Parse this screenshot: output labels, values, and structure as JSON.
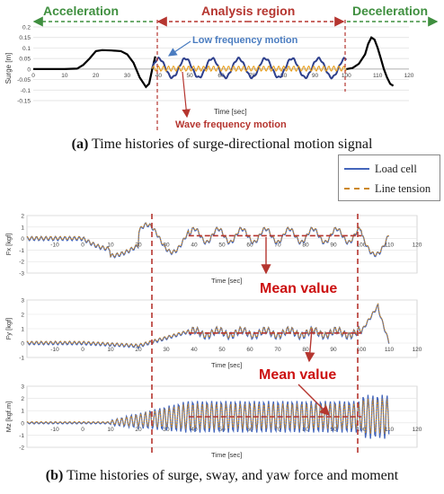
{
  "figure_a": {
    "caption_prefix": "(a)",
    "caption_text": " Time histories of surge-directional motion signal",
    "annotations": {
      "acceleration": "Acceleration",
      "analysis_region": "Analysis region",
      "deceleration": "Deceleration",
      "low_frequency_motion": "Low frequency motion",
      "wave_frequency_motion": "Wave frequency motion"
    },
    "colors": {
      "signal": "#000000",
      "low_freq": "#2d3f8c",
      "wave_freq": "#e8a020",
      "region": "#b5352f",
      "accel": "#3f8f3f",
      "low_label": "#4a7cc0",
      "wave_label": "#b5352f"
    }
  },
  "figure_b": {
    "caption_prefix": "(b)",
    "caption_text": " Time histories of surge, sway, and yaw force and moment",
    "legend": {
      "load_cell": "Load cell",
      "line_tension": "Line tension"
    },
    "mean_value_1": "Mean value",
    "mean_value_2": "Mean value",
    "colors": {
      "load_cell": "#4466bb",
      "line_tension": "#cc8822",
      "marker": "#b5352f",
      "mean_text": "#cc1111"
    }
  },
  "chart_data": [
    {
      "type": "line",
      "id": "surge_motion",
      "xlabel": "Time [sec]",
      "ylabel": "Surge [m]",
      "xlim": [
        0,
        120
      ],
      "ylim": [
        -0.15,
        0.2
      ],
      "xticks": [
        "0",
        "10",
        "20",
        "30",
        "40",
        "50",
        "60",
        "70",
        "80",
        "90",
        "100",
        "110",
        "120"
      ],
      "yticks": [
        "-0.15",
        "-0.1",
        "-0.05",
        "0",
        "0.05",
        "0.1",
        "0.15",
        "0.2"
      ],
      "analysis_region": [
        38,
        100
      ],
      "series": [
        {
          "x": [
            0,
            5,
            10,
            14,
            16,
            18,
            20,
            22,
            25,
            28,
            30,
            32,
            34,
            36,
            37,
            38,
            39
          ],
          "y": [
            0,
            0,
            0,
            0.002,
            0.02,
            0.05,
            0.085,
            0.09,
            0.088,
            0.085,
            0.07,
            0.03,
            -0.04,
            -0.085,
            -0.07,
            0.0,
            0.06
          ]
        },
        {
          "x": [
            100,
            102,
            104,
            106,
            107,
            108,
            109,
            110,
            111,
            112,
            113,
            114,
            115
          ],
          "y": [
            0,
            0.005,
            0.025,
            0.07,
            0.12,
            0.15,
            0.14,
            0.1,
            0.05,
            0.0,
            -0.04,
            -0.07,
            -0.08
          ]
        }
      ]
    },
    {
      "type": "line",
      "id": "fx",
      "ylabel": "Fx [kgf]",
      "xlabel": "Time [sec]",
      "xlim": [
        -20,
        120
      ],
      "ylim": [
        -3,
        2
      ],
      "xticks": [
        "-10",
        "0",
        "10",
        "20",
        "30",
        "40",
        "50",
        "60",
        "70",
        "80",
        "90",
        "100",
        "110",
        "120"
      ],
      "yticks": [
        "2",
        "1",
        "0",
        "-1",
        "-2",
        "-3"
      ],
      "mean": 0.25,
      "series": [
        {
          "name": "Load cell"
        },
        {
          "name": "Line tension"
        }
      ]
    },
    {
      "type": "line",
      "id": "fy",
      "ylabel": "Fy [kgf]",
      "xlabel": "Time [sec]",
      "xlim": [
        -20,
        120
      ],
      "ylim": [
        -1,
        3
      ],
      "xticks": [
        "-10",
        "0",
        "10",
        "20",
        "30",
        "40",
        "50",
        "60",
        "70",
        "80",
        "90",
        "100",
        "110",
        "120"
      ],
      "yticks": [
        "3",
        "2",
        "1",
        "0",
        "-1"
      ],
      "mean": 0.7,
      "series": [
        {
          "name": "Load cell"
        },
        {
          "name": "Line tension"
        }
      ]
    },
    {
      "type": "line",
      "id": "mz",
      "ylabel": "Mz [kgf.m]",
      "xlabel": "Time [sec]",
      "xlim": [
        -20,
        120
      ],
      "ylim": [
        -2,
        3
      ],
      "xticks": [
        "-10",
        "0",
        "10",
        "20",
        "30",
        "40",
        "50",
        "60",
        "70",
        "80",
        "90",
        "100",
        "110",
        "120"
      ],
      "yticks": [
        "3",
        "2",
        "1",
        "0",
        "-1",
        "-2"
      ],
      "mean": 0.5,
      "series": [
        {
          "name": "Load cell"
        },
        {
          "name": "Line tension"
        }
      ]
    }
  ]
}
